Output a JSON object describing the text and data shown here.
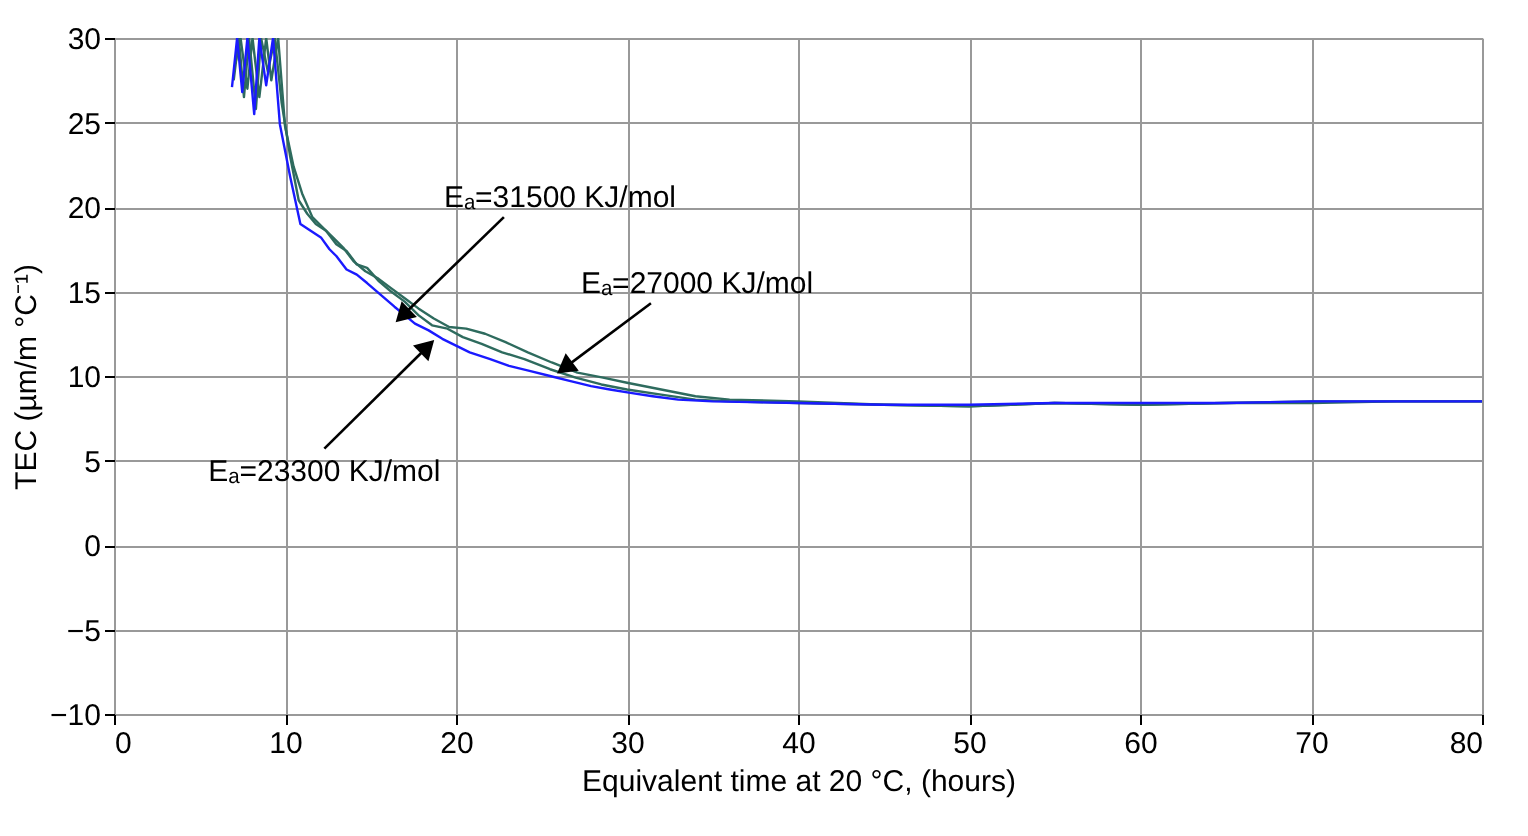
{
  "chart_data": {
    "type": "line",
    "xlabel": "Equivalent time at 20 °C, (hours)",
    "ylabel": "TEC (µm/m °C⁻¹)",
    "xlim": [
      0,
      80
    ],
    "ylim": [
      -10,
      30
    ],
    "xticks": [
      0,
      10,
      20,
      30,
      40,
      50,
      60,
      70,
      80
    ],
    "yticks": [
      -10,
      -5,
      0,
      5,
      10,
      15,
      20,
      25,
      30
    ],
    "grid": true,
    "marker": "none",
    "line_style": "solid",
    "series": [
      {
        "color": "#2e6b5e",
        "x": [
          7.0,
          7.3,
          7.6,
          7.9,
          8.3,
          8.6,
          9.0,
          9.4,
          9.8,
          10.3,
          10.8,
          11.3,
          11.8,
          12.4,
          13.0,
          13.6,
          14.2,
          14.8,
          15.5,
          16.2,
          17.0,
          17.8,
          18.6,
          19.5,
          20.4,
          21.5,
          22.7,
          24.0,
          25.5,
          27.0,
          28.5,
          30.0,
          32.0,
          34.0,
          36.0,
          40.0,
          45.0,
          50.0,
          55.0,
          60.0,
          65.0,
          70.0,
          75.0,
          80.0
        ],
        "values": [
          27.5,
          30,
          26.5,
          30,
          25.8,
          30,
          28,
          30,
          26.2,
          23.0,
          20.4,
          19.6,
          19.0,
          18.6,
          17.8,
          17.4,
          16.6,
          16.4,
          15.6,
          15.0,
          14.4,
          13.6,
          13.0,
          12.8,
          12.3,
          11.9,
          11.4,
          11.0,
          10.4,
          9.9,
          9.5,
          9.2,
          8.9,
          8.6,
          8.5,
          8.4,
          8.3,
          8.2,
          8.4,
          8.3,
          8.4,
          8.4,
          8.5,
          8.5
        ]
      },
      {
        "color": "#2e6b5e",
        "x": [
          7.1,
          7.4,
          7.8,
          8.1,
          8.5,
          8.9,
          9.2,
          9.6,
          10.0,
          10.5,
          11.0,
          11.6,
          12.2,
          12.8,
          13.4,
          14.0,
          14.7,
          15.4,
          16.2,
          17.0,
          17.8,
          18.7,
          19.6,
          20.6,
          21.7,
          22.9,
          24.2,
          25.6,
          27.1,
          28.6,
          30.0,
          32.0,
          34.0,
          36.0,
          40.0,
          45.0,
          50.0,
          55.0,
          60.0,
          65.0,
          70.0,
          75.0,
          80.0
        ],
        "values": [
          28.5,
          30,
          27,
          30,
          26.5,
          30,
          27.5,
          30,
          24.8,
          22.4,
          20.8,
          19.4,
          18.8,
          18.2,
          17.6,
          16.8,
          16.2,
          15.8,
          15.2,
          14.6,
          14.0,
          13.4,
          12.9,
          12.8,
          12.5,
          12.0,
          11.4,
          10.8,
          10.2,
          9.9,
          9.6,
          9.2,
          8.8,
          8.6,
          8.5,
          8.3,
          8.2,
          8.4,
          8.3,
          8.4,
          8.5,
          8.5,
          8.5
        ]
      },
      {
        "color": "#1a1aff",
        "x": [
          6.9,
          7.2,
          7.5,
          7.8,
          8.2,
          8.5,
          8.9,
          9.3,
          9.7,
          10.3,
          10.9,
          11.5,
          12.1,
          12.6,
          13.0,
          13.6,
          14.2,
          14.8,
          15.6,
          16.4,
          17.0,
          17.6,
          18.4,
          19.2,
          20.0,
          20.8,
          22.0,
          23.1,
          24.3,
          25.5,
          26.7,
          27.9,
          29.0,
          30.2,
          31.5,
          33.0,
          35.0,
          40.0,
          45.0,
          50.0,
          55.0,
          60.0,
          65.0,
          70.0,
          75.0,
          80.0
        ],
        "values": [
          27.1,
          30,
          26.8,
          30,
          25.5,
          30,
          27.2,
          30,
          24.9,
          21.8,
          19.0,
          18.6,
          18.2,
          17.5,
          17.1,
          16.3,
          16.0,
          15.5,
          14.8,
          14.1,
          13.6,
          13.1,
          12.7,
          12.2,
          11.8,
          11.4,
          11.0,
          10.6,
          10.3,
          10.0,
          9.7,
          9.4,
          9.2,
          9.0,
          8.8,
          8.6,
          8.5,
          8.4,
          8.3,
          8.3,
          8.4,
          8.4,
          8.4,
          8.5,
          8.5,
          8.5
        ]
      }
    ],
    "annotations": [
      {
        "text": "Eₐ=31500 KJ/mol",
        "x": 17.0,
        "y": 13.7
      },
      {
        "text": "Eₐ=27000 KJ/mol",
        "x": 26.5,
        "y": 10.6
      },
      {
        "text": "Eₐ=23300 KJ/mol",
        "x": 18.2,
        "y": 11.6
      }
    ]
  }
}
